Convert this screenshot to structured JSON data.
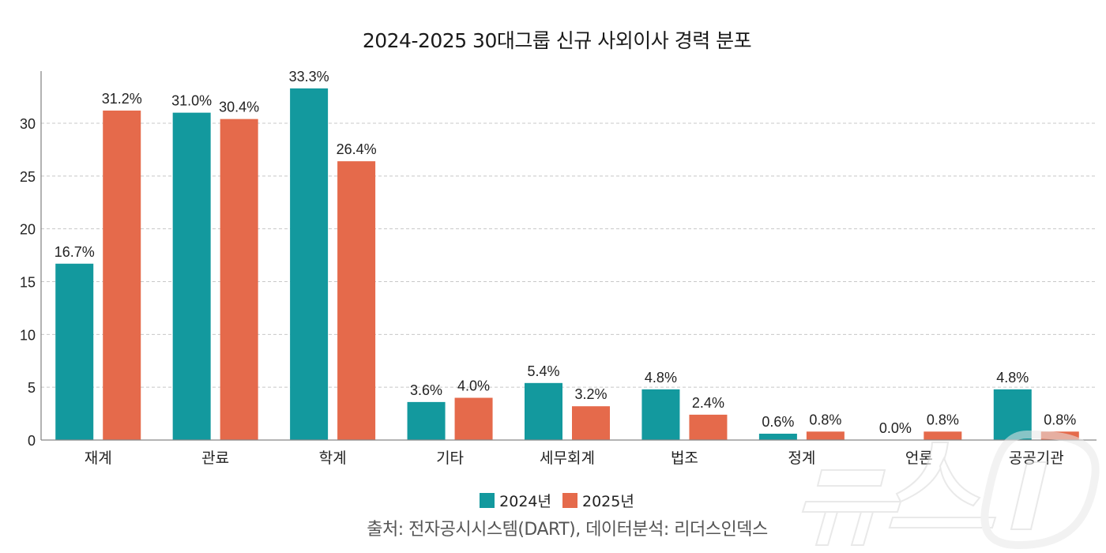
{
  "chart_data": {
    "type": "bar",
    "title": "2024-2025 30대그룹 신규 사외이사 경력 분포",
    "xlabel": "",
    "ylabel": "",
    "ylim": [
      0,
      35
    ],
    "yticks": [
      0,
      5,
      10,
      15,
      20,
      25,
      30
    ],
    "grid": true,
    "legend_position": "bottom-center",
    "categories": [
      "재계",
      "관료",
      "학계",
      "기타",
      "세무회계",
      "법조",
      "정계",
      "언론",
      "공공기관"
    ],
    "series": [
      {
        "name": "2024년",
        "color": "#13999e",
        "values": [
          16.7,
          31.0,
          33.3,
          3.6,
          5.4,
          4.8,
          0.6,
          0.0,
          4.8
        ],
        "labels": [
          "16.7%",
          "31.0%",
          "33.3%",
          "3.6%",
          "5.4%",
          "4.8%",
          "0.6%",
          "0.0%",
          "4.8%"
        ]
      },
      {
        "name": "2025년",
        "color": "#e56a4b",
        "values": [
          31.2,
          30.4,
          26.4,
          4.0,
          3.2,
          2.4,
          0.8,
          0.8,
          0.8
        ],
        "labels": [
          "31.2%",
          "30.4%",
          "26.4%",
          "4.0%",
          "3.2%",
          "2.4%",
          "0.8%",
          "0.8%",
          "0.8%"
        ]
      }
    ],
    "source": "출처: 전자공시시스템(DART), 데이터분석: 리더스인덱스"
  },
  "watermark": {
    "text": "뉴스1",
    "icon": "news1-logo-icon"
  }
}
